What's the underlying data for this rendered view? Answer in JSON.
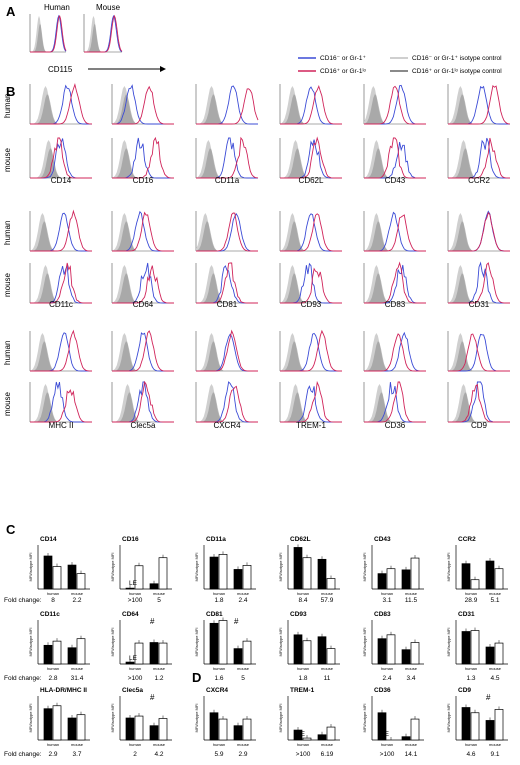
{
  "figure": {
    "panels": {
      "A": "A",
      "B": "B",
      "C": "C",
      "D": "D"
    },
    "panelA": {
      "species": [
        "Human",
        "Mouse"
      ],
      "marker": "CD115"
    },
    "legend": [
      {
        "label": "CD16⁻ or Gr-1⁺",
        "color": "#3b4bd6",
        "style": "solid"
      },
      {
        "label": "CD16⁺ or Gr-1ˡᵒ",
        "color": "#d0245a",
        "style": "solid"
      },
      {
        "label": "CD16⁻ or Gr-1⁺ isotype control",
        "color": "#cfcfcf",
        "style": "iso"
      },
      {
        "label": "CD16⁺ or Gr-1ˡᵒ isotype control",
        "color": "#8a8a8a",
        "style": "iso"
      }
    ],
    "rowLabels": [
      "human",
      "mouse"
    ],
    "histMarkers": [
      [
        "CD14",
        "CD16",
        "CD11a",
        "CD62L",
        "CD43",
        "CCR2"
      ],
      [
        "CD11c",
        "CD64",
        "CD81",
        "CD93",
        "CD83",
        "CD31"
      ],
      [
        "MHC II",
        "Clec5a",
        "CXCR4",
        "TREM-1",
        "CD36",
        "CD9"
      ]
    ],
    "barYLabel": "MFI/Isotype MFI",
    "foldLabel": "Fold change:",
    "xCats": [
      "human",
      "mouse"
    ]
  },
  "chart_data": [
    {
      "type": "bar",
      "title": "CD14",
      "categories": [
        "human",
        "mouse"
      ],
      "series": [
        {
          "values": [
            1000,
            150
          ]
        },
        {
          "values": [
            110,
            25
          ]
        }
      ],
      "yscale": "log",
      "fold": [
        "8",
        "2.2"
      ]
    },
    {
      "type": "bar",
      "title": "CD16",
      "categories": [
        "human",
        "mouse"
      ],
      "series": [
        {
          "values": [
            1.2,
            3
          ]
        },
        {
          "values": [
            130,
            700
          ]
        }
      ],
      "yscale": "log",
      "fold": [
        ">100",
        "5"
      ],
      "annotation": "LE"
    },
    {
      "type": "bar",
      "title": "CD11a",
      "categories": [
        "human",
        "mouse"
      ],
      "series": [
        {
          "values": [
            800,
            60
          ]
        },
        {
          "values": [
            1400,
            140
          ]
        }
      ],
      "yscale": "log",
      "fold": [
        "1.8",
        "2.4"
      ]
    },
    {
      "type": "bar",
      "title": "CD62L",
      "categories": [
        "human",
        "mouse"
      ],
      "series": [
        {
          "values": [
            6000,
            500
          ]
        },
        {
          "values": [
            700,
            9
          ]
        }
      ],
      "yscale": "log",
      "fold": [
        "8.4",
        "57.9"
      ]
    },
    {
      "type": "bar",
      "title": "CD43",
      "categories": [
        "human",
        "mouse"
      ],
      "series": [
        {
          "values": [
            25,
            55
          ]
        },
        {
          "values": [
            70,
            650
          ]
        }
      ],
      "yscale": "log",
      "fold": [
        "3.1",
        "11.5"
      ]
    },
    {
      "type": "bar",
      "title": "CCR2",
      "categories": [
        "human",
        "mouse"
      ],
      "series": [
        {
          "values": [
            200,
            350
          ]
        },
        {
          "values": [
            7,
            70
          ]
        }
      ],
      "yscale": "log",
      "fold": [
        "28.9",
        "5.1"
      ]
    },
    {
      "type": "bar",
      "title": "CD11c",
      "categories": [
        "human",
        "mouse"
      ],
      "series": [
        {
          "values": [
            50,
            30
          ]
        },
        {
          "values": [
            120,
            200
          ]
        }
      ],
      "yscale": "log",
      "fold": [
        "2.8",
        "31.4"
      ]
    },
    {
      "type": "bar",
      "title": "CD64",
      "categories": [
        "human",
        "mouse"
      ],
      "series": [
        {
          "values": [
            1.5,
            90
          ]
        },
        {
          "values": [
            80,
            80
          ]
        }
      ],
      "yscale": "log",
      "fold": [
        ">100",
        "1.2"
      ],
      "annotation": "LE",
      "marks": [
        "#"
      ]
    },
    {
      "type": "bar",
      "title": "CD81",
      "categories": [
        "human",
        "mouse"
      ],
      "series": [
        {
          "values": [
            5000,
            25
          ]
        },
        {
          "values": [
            9000,
            120
          ]
        }
      ],
      "yscale": "log",
      "fold": [
        "1.6",
        "5"
      ],
      "marks": [
        "#"
      ]
    },
    {
      "type": "bar",
      "title": "CD93",
      "categories": [
        "human",
        "mouse"
      ],
      "series": [
        {
          "values": [
            450,
            300
          ]
        },
        {
          "values": [
            130,
            25
          ]
        }
      ],
      "yscale": "log",
      "fold": [
        "1.8",
        "11"
      ]
    },
    {
      "type": "bar",
      "title": "CD83",
      "categories": [
        "human",
        "mouse"
      ],
      "series": [
        {
          "values": [
            200,
            20
          ]
        },
        {
          "values": [
            450,
            90
          ]
        }
      ],
      "yscale": "log",
      "fold": [
        "2.4",
        "3.4"
      ]
    },
    {
      "type": "bar",
      "title": "CD31",
      "categories": [
        "human",
        "mouse"
      ],
      "series": [
        {
          "values": [
            900,
            35
          ]
        },
        {
          "values": [
            1100,
            80
          ]
        }
      ],
      "yscale": "log",
      "fold": [
        "1.3",
        "4.5"
      ]
    },
    {
      "type": "bar",
      "title": "HLA-DR/MHC II",
      "categories": [
        "human",
        "mouse"
      ],
      "series": [
        {
          "values": [
            700,
            100
          ]
        },
        {
          "values": [
            1300,
            200
          ]
        }
      ],
      "yscale": "log",
      "fold": [
        "2.9",
        "3.7"
      ]
    },
    {
      "type": "bar",
      "title": "Clec5a",
      "categories": [
        "human",
        "mouse"
      ],
      "series": [
        {
          "values": [
            100,
            20
          ]
        },
        {
          "values": [
            150,
            90
          ]
        }
      ],
      "yscale": "log",
      "fold": [
        "2",
        "4.2"
      ],
      "marks": [
        "#"
      ]
    },
    {
      "type": "bar",
      "title": "CXCR4",
      "categories": [
        "human",
        "mouse"
      ],
      "series": [
        {
          "values": [
            300,
            20
          ]
        },
        {
          "values": [
            80,
            80
          ]
        }
      ],
      "yscale": "log",
      "fold": [
        "5.9",
        "2.9"
      ]
    },
    {
      "type": "bar",
      "title": "TREM-1",
      "categories": [
        "human",
        "mouse"
      ],
      "series": [
        {
          "values": [
            8,
            3
          ]
        },
        {
          "values": [
            1.5,
            15
          ]
        }
      ],
      "yscale": "log",
      "fold": [
        ">100",
        "6.19"
      ],
      "annotation": "LE"
    },
    {
      "type": "bar",
      "title": "CD36",
      "categories": [
        "human",
        "mouse"
      ],
      "series": [
        {
          "values": [
            300,
            2
          ]
        },
        {
          "values": [
            1,
            80
          ]
        }
      ],
      "yscale": "log",
      "fold": [
        ">100",
        "14.1"
      ],
      "annotation": "LE"
    },
    {
      "type": "bar",
      "title": "CD9",
      "categories": [
        "human",
        "mouse"
      ],
      "series": [
        {
          "values": [
            900,
            60
          ]
        },
        {
          "values": [
            300,
            600
          ]
        }
      ],
      "yscale": "log",
      "fold": [
        "4.6",
        "9.1"
      ],
      "marks": [
        "#"
      ]
    }
  ]
}
